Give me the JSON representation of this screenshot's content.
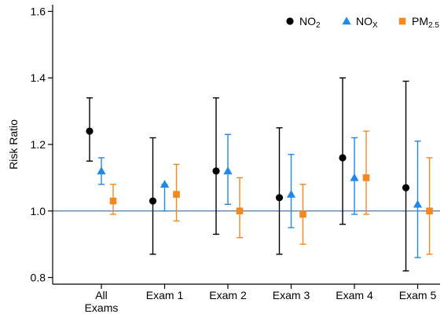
{
  "chart_data": {
    "type": "scatter",
    "title": "",
    "xlabel": "",
    "ylabel": "Risk Ratio",
    "ylim": [
      0.78,
      1.62
    ],
    "yticks": [
      "0.8",
      "1.0",
      "1.2",
      "1.4",
      "1.6"
    ],
    "reference_line": 1.0,
    "grid": false,
    "legend_position": "top-right",
    "categories": [
      [
        "All",
        "Exams"
      ],
      [
        "Exam 1"
      ],
      [
        "Exam 2"
      ],
      [
        "Exam 3"
      ],
      [
        "Exam 4"
      ],
      [
        "Exam 5"
      ]
    ],
    "series": [
      {
        "name": "NO",
        "name_sub": "2",
        "marker": "circle",
        "color": "#000000",
        "values": [
          1.24,
          1.03,
          1.12,
          1.04,
          1.16,
          1.07
        ],
        "lower": [
          1.15,
          0.87,
          0.93,
          0.87,
          0.96,
          0.82
        ],
        "upper": [
          1.34,
          1.22,
          1.34,
          1.25,
          1.4,
          1.39
        ]
      },
      {
        "name": "NO",
        "name_sub": "X",
        "marker": "triangle",
        "color": "#1f88e8",
        "values": [
          1.12,
          1.08,
          1.12,
          1.05,
          1.1,
          1.02
        ],
        "lower": [
          1.08,
          1.0,
          1.02,
          0.95,
          0.99,
          0.86
        ],
        "upper": [
          1.16,
          1.08,
          1.23,
          1.17,
          1.22,
          1.21
        ]
      },
      {
        "name": "PM",
        "name_sub": "2.5",
        "marker": "square",
        "color": "#f5871f",
        "values": [
          1.03,
          1.05,
          1.0,
          0.99,
          1.1,
          1.0
        ],
        "lower": [
          0.99,
          0.97,
          0.92,
          0.9,
          0.99,
          0.87
        ],
        "upper": [
          1.08,
          1.14,
          1.1,
          1.08,
          1.24,
          1.16
        ]
      }
    ],
    "colors": {
      "axis": "#000000",
      "reference_line": "#4a7aa6"
    }
  }
}
